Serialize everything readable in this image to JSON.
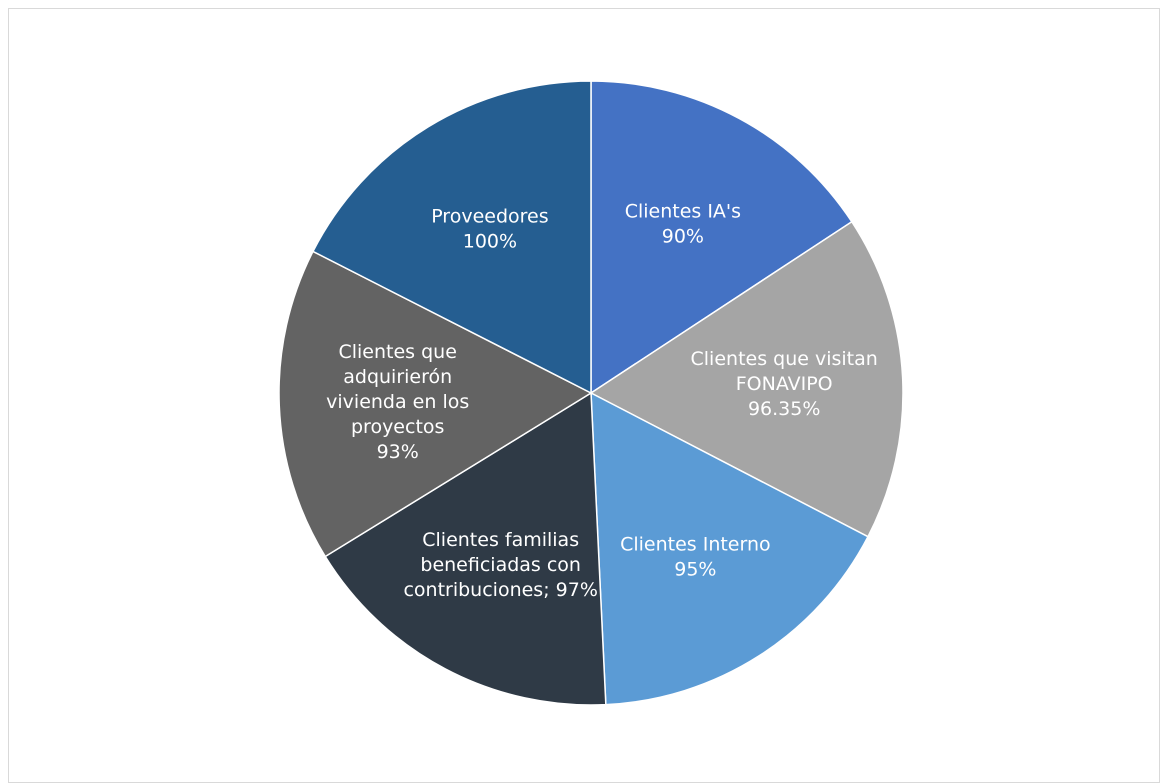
{
  "chart_data": {
    "type": "pie",
    "title": "",
    "slices": [
      {
        "label_lines": [
          "Clientes IA's",
          "90%"
        ],
        "value": 90,
        "color": "#4472c4"
      },
      {
        "label_lines": [
          "Clientes que visitan",
          "FONAVIPO",
          "96.35%"
        ],
        "value": 96.35,
        "color": "#a5a5a5"
      },
      {
        "label_lines": [
          "Clientes Interno",
          "95%"
        ],
        "value": 95,
        "color": "#5b9bd5"
      },
      {
        "label_lines": [
          "Clientes familias",
          "beneficiadas con",
          "contribuciones; 97%"
        ],
        "value": 97,
        "color": "#2f3a46"
      },
      {
        "label_lines": [
          "Clientes que",
          "adquirierón",
          "vivienda en los",
          "proyectos",
          "93%"
        ],
        "value": 93,
        "color": "#636363"
      },
      {
        "label_lines": [
          "Proveedores",
          "100%"
        ],
        "value": 100,
        "color": "#255e91"
      }
    ]
  }
}
